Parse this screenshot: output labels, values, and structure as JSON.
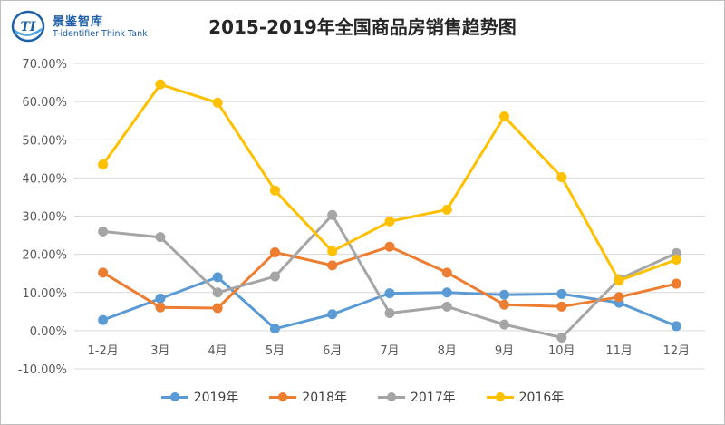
{
  "logo": {
    "name": "景鉴智库",
    "sub": "T-identifier Think Tank",
    "mark": "TI"
  },
  "colors": {
    "2019": "#5b9bd5",
    "2018": "#ed7d31",
    "2017": "#a5a5a5",
    "2016": "#ffc000",
    "grid": "#d9d9d9",
    "axis_text": "#595959"
  },
  "chart_data": {
    "type": "line",
    "title": "2015-2019年全国商品房销售趋势图",
    "categories": [
      "1-2月",
      "3月",
      "4月",
      "5月",
      "6月",
      "7月",
      "8月",
      "9月",
      "10月",
      "11月",
      "12月"
    ],
    "ylim": [
      -10,
      70
    ],
    "yticks": [
      -10,
      0,
      10,
      20,
      30,
      40,
      50,
      60,
      70
    ],
    "ytick_labels": [
      "-10.00%",
      "0.00%",
      "10.00%",
      "20.00%",
      "30.00%",
      "40.00%",
      "50.00%",
      "60.00%",
      "70.00%"
    ],
    "grid": true,
    "legend_position": "bottom",
    "series": [
      {
        "name": "2019年",
        "key": "2019",
        "values": [
          2.8,
          8.4,
          14.0,
          0.5,
          4.3,
          9.8,
          10.0,
          9.4,
          9.6,
          7.3,
          1.2
        ]
      },
      {
        "name": "2018年",
        "key": "2018",
        "values": [
          15.2,
          6.1,
          5.9,
          20.5,
          17.1,
          22.0,
          15.2,
          6.8,
          6.3,
          8.8,
          12.3
        ]
      },
      {
        "name": "2017年",
        "key": "2017",
        "values": [
          26.0,
          24.5,
          10.0,
          14.2,
          30.3,
          4.6,
          6.3,
          1.6,
          -1.8,
          13.5,
          20.3
        ]
      },
      {
        "name": "2016年",
        "key": "2016",
        "values": [
          43.5,
          64.5,
          59.7,
          36.7,
          20.8,
          28.6,
          31.7,
          56.1,
          40.2,
          13.1,
          18.6
        ]
      }
    ]
  }
}
